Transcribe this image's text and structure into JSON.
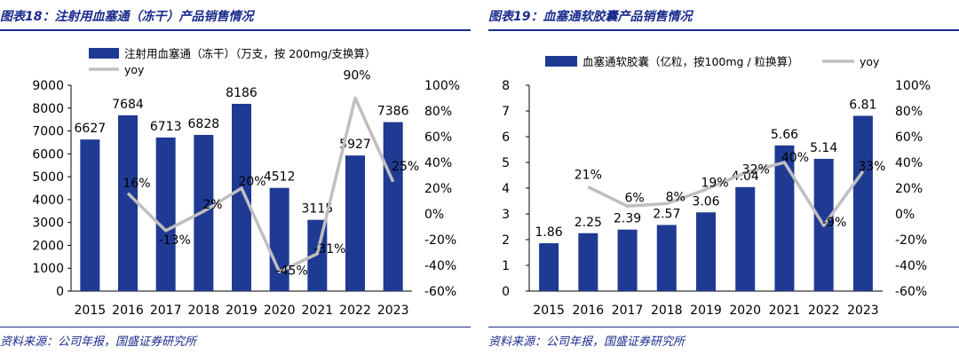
{
  "colors": {
    "bar": "#1f3a93",
    "line": "#bfbfbf",
    "accent": "#1a2b8c"
  },
  "left": {
    "figure_title": "图表18：注射用血塞通（冻干）产品销售情况",
    "source": "资料来源：公司年报，国盛证券研究所"
  },
  "right": {
    "figure_title": "图表19：血塞通软胶囊产品销售情况",
    "source": "资料来源：公司年报，国盛证券研究所"
  },
  "chart_data": [
    {
      "type": "bar",
      "categories": [
        "2015",
        "2016",
        "2017",
        "2018",
        "2019",
        "2020",
        "2021",
        "2022",
        "2023"
      ],
      "series": [
        {
          "name": "注射用血塞通（冻干）（万支，按 200mg/支换算）",
          "type": "bar",
          "axis": "left",
          "values": [
            6627,
            7684,
            6713,
            6828,
            8186,
            4512,
            3115,
            5927,
            7386
          ],
          "labels": [
            "6627",
            "7684",
            "6713",
            "6828",
            "8186",
            "4512",
            "3115",
            "5927",
            "7386"
          ]
        },
        {
          "name": "yoy",
          "type": "line",
          "axis": "right",
          "values": [
            null,
            16,
            -13,
            2,
            20,
            -45,
            -31,
            90,
            25
          ],
          "labels": [
            "",
            "16%",
            "-13%",
            "2%",
            "20%",
            "-45%",
            "-31%",
            "90%",
            "25%"
          ]
        }
      ],
      "ylim": [
        0,
        9000
      ],
      "yticks": [
        "0",
        "1000",
        "2000",
        "3000",
        "4000",
        "5000",
        "6000",
        "7000",
        "8000",
        "9000"
      ],
      "y2lim": [
        -60,
        100
      ],
      "y2ticks": [
        "-60%",
        "-40%",
        "-20%",
        "0%",
        "20%",
        "40%",
        "60%",
        "80%",
        "100%"
      ],
      "legend_position": "top-left",
      "grid": false
    },
    {
      "type": "bar",
      "categories": [
        "2015",
        "2016",
        "2017",
        "2018",
        "2019",
        "2020",
        "2021",
        "2022",
        "2023"
      ],
      "series": [
        {
          "name": "血塞通软胶囊（亿粒，按100mg / 粒换算）",
          "type": "bar",
          "axis": "left",
          "values": [
            1.86,
            2.25,
            2.39,
            2.57,
            3.06,
            4.04,
            5.66,
            5.14,
            6.81
          ],
          "labels": [
            "1.86",
            "2.25",
            "2.39",
            "2.57",
            "3.06",
            "4.04",
            "5.66",
            "5.14",
            "6.81"
          ]
        },
        {
          "name": "yoy",
          "type": "line",
          "axis": "right",
          "values": [
            null,
            21,
            6,
            8,
            19,
            32,
            40,
            -9,
            33
          ],
          "labels": [
            "",
            "21%",
            "6%",
            "8%",
            "19%",
            "32%",
            "40%",
            "-9%",
            "33%"
          ]
        }
      ],
      "ylim": [
        0,
        8
      ],
      "yticks": [
        "0",
        "1",
        "2",
        "3",
        "4",
        "5",
        "6",
        "7",
        "8"
      ],
      "y2lim": [
        -60,
        100
      ],
      "y2ticks": [
        "-60%",
        "-40%",
        "-20%",
        "0%",
        "20%",
        "40%",
        "60%",
        "80%",
        "100%"
      ],
      "legend_position": "top",
      "grid": false
    }
  ]
}
